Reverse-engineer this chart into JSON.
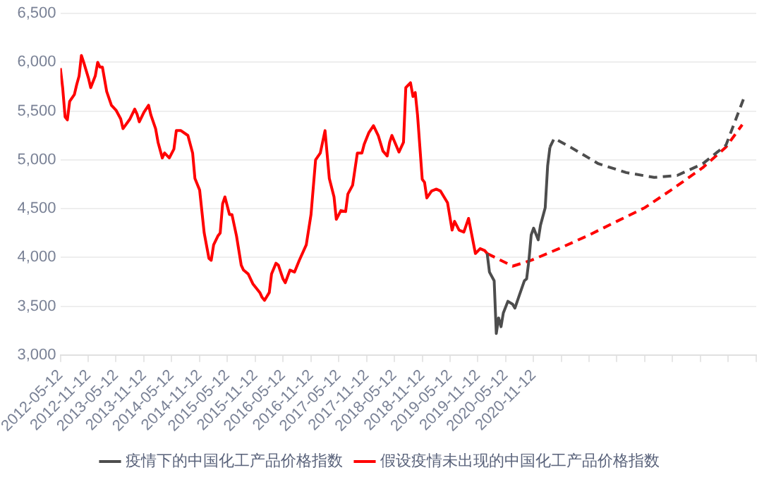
{
  "chart_data": {
    "type": "line",
    "legend": "bottom",
    "grid": "y",
    "marker": "none",
    "xlim": [
      "2012-05-12",
      "2024-11-12"
    ],
    "xticks": [
      {
        "value": "2012-05-12",
        "label": "2012-05-12"
      },
      {
        "value": "2012-11-12",
        "label": "2012-11-12"
      },
      {
        "value": "2013-05-12",
        "label": "2013-05-12"
      },
      {
        "value": "2013-11-12",
        "label": "2013-11-12"
      },
      {
        "value": "2014-05-12",
        "label": "2014-05-12"
      },
      {
        "value": "2014-11-12",
        "label": "2014-11-12"
      },
      {
        "value": "2015-05-12",
        "label": "2015-05-12"
      },
      {
        "value": "2015-11-12",
        "label": "2015-11-12"
      },
      {
        "value": "2016-05-12",
        "label": "2016-05-12"
      },
      {
        "value": "2016-11-12",
        "label": "2016-11-12"
      },
      {
        "value": "2017-05-12",
        "label": "2017-05-12"
      },
      {
        "value": "2017-11-12",
        "label": "2017-11-12"
      },
      {
        "value": "2018-05-12",
        "label": "2018-05-12"
      },
      {
        "value": "2018-11-12",
        "label": "2018-11-12"
      },
      {
        "value": "2019-05-12",
        "label": "2019-05-12"
      },
      {
        "value": "2019-11-12",
        "label": "2019-11-12"
      },
      {
        "value": "2020-05-12",
        "label": "2020-05-12"
      },
      {
        "value": "2020-11-12",
        "label": "2020-11-12"
      },
      {
        "value": "2021-05-12",
        "label": null
      },
      {
        "value": "2021-11-12",
        "label": null
      },
      {
        "value": "2022-05-12",
        "label": null
      },
      {
        "value": "2022-11-12",
        "label": null
      },
      {
        "value": "2023-05-12",
        "label": null
      },
      {
        "value": "2023-11-12",
        "label": null
      },
      {
        "value": "2024-05-12",
        "label": null
      },
      {
        "value": "2024-11-12",
        "label": null
      }
    ],
    "ylim": [
      3000,
      6500
    ],
    "yticks": [
      {
        "value": 3000,
        "label": "3,000"
      },
      {
        "value": 3500,
        "label": "3,500"
      },
      {
        "value": 4000,
        "label": "4,000"
      },
      {
        "value": 4500,
        "label": "4,500"
      },
      {
        "value": 5000,
        "label": "5,000"
      },
      {
        "value": 5500,
        "label": "5,500"
      },
      {
        "value": 6000,
        "label": "6,000"
      },
      {
        "value": 6500,
        "label": "6,500"
      }
    ],
    "series": [
      {
        "name": "疫情下的中国化工产品价格指数",
        "color": "#4d4d4d",
        "line_style": "solid",
        "x": [
          "2020-01-12",
          "2020-01-27",
          "2020-02-27",
          "2020-03-12",
          "2020-03-27",
          "2020-04-12",
          "2020-04-27",
          "2020-05-27",
          "2020-06-27",
          "2020-07-12",
          "2020-08-12",
          "2020-09-12",
          "2020-09-27",
          "2020-10-12",
          "2020-10-27",
          "2020-11-12",
          "2020-12-12",
          "2020-12-27",
          "2021-01-27",
          "2021-02-12",
          "2021-02-27"
        ],
        "values": [
          4040,
          3850,
          3760,
          3220,
          3380,
          3290,
          3430,
          3550,
          3520,
          3480,
          3620,
          3760,
          3780,
          3970,
          4230,
          4300,
          4180,
          4330,
          4510,
          4940,
          5130
        ]
      },
      {
        "color": "#4d4d4d",
        "line_style": "dashed",
        "x": [
          "2021-02-27",
          "2021-03-27",
          "2021-07-12",
          "2022-01-12",
          "2022-07-12",
          "2023-01-12",
          "2023-06-12",
          "2023-11-27",
          "2024-04-27",
          "2024-08-27"
        ],
        "values": [
          5130,
          5220,
          5130,
          4960,
          4870,
          4820,
          4840,
          4960,
          5150,
          5650
        ]
      },
      {
        "name": "假设疫情未出现的中国化工产品价格指数",
        "color": "#ff0000",
        "line_style": "solid",
        "x": [
          "2012-05-12",
          "2012-05-27",
          "2012-06-12",
          "2012-06-27",
          "2012-07-12",
          "2012-08-12",
          "2012-08-27",
          "2012-09-12",
          "2012-09-27",
          "2012-10-12",
          "2012-11-12",
          "2012-11-27",
          "2012-12-27",
          "2013-01-12",
          "2013-01-27",
          "2013-02-12",
          "2013-03-12",
          "2013-04-12",
          "2013-05-12",
          "2013-06-12",
          "2013-06-27",
          "2013-08-12",
          "2013-09-12",
          "2013-09-27",
          "2013-10-12",
          "2013-11-12",
          "2013-12-12",
          "2013-12-27",
          "2014-01-27",
          "2014-02-12",
          "2014-03-12",
          "2014-03-27",
          "2014-04-27",
          "2014-05-27",
          "2014-06-12",
          "2014-07-12",
          "2014-08-27",
          "2014-09-27",
          "2014-10-12",
          "2014-11-12",
          "2014-12-12",
          "2015-01-12",
          "2015-01-27",
          "2015-02-12",
          "2015-03-12",
          "2015-03-27",
          "2015-04-12",
          "2015-04-27",
          "2015-05-27",
          "2015-06-12",
          "2015-07-12",
          "2015-08-12",
          "2015-08-27",
          "2015-09-27",
          "2015-10-27",
          "2015-12-12",
          "2015-12-27",
          "2016-01-12",
          "2016-02-12",
          "2016-02-27",
          "2016-03-27",
          "2016-04-12",
          "2016-05-12",
          "2016-05-27",
          "2016-06-27",
          "2016-07-27",
          "2016-08-27",
          "2016-10-12",
          "2016-11-12",
          "2016-12-12",
          "2017-01-12",
          "2017-02-12",
          "2017-03-12",
          "2017-04-12",
          "2017-04-27",
          "2017-05-27",
          "2017-06-27",
          "2017-07-12",
          "2017-08-12",
          "2017-09-12",
          "2017-10-12",
          "2017-10-27",
          "2017-11-27",
          "2017-12-27",
          "2018-01-27",
          "2018-02-27",
          "2018-03-27",
          "2018-04-12",
          "2018-04-27",
          "2018-06-12",
          "2018-07-12",
          "2018-07-27",
          "2018-08-27",
          "2018-09-12",
          "2018-09-27",
          "2018-10-12",
          "2018-11-12",
          "2018-11-27",
          "2018-12-12",
          "2019-01-12",
          "2019-02-12",
          "2019-03-12",
          "2019-04-27",
          "2019-05-27",
          "2019-06-12",
          "2019-07-12",
          "2019-08-12",
          "2019-09-12",
          "2019-09-27",
          "2019-10-27",
          "2019-11-27",
          "2019-12-27",
          "2020-01-12"
        ],
        "values": [
          5940,
          5740,
          5440,
          5410,
          5600,
          5670,
          5770,
          5860,
          6070,
          6000,
          5840,
          5740,
          5860,
          6000,
          5950,
          5950,
          5700,
          5560,
          5510,
          5420,
          5320,
          5420,
          5520,
          5470,
          5390,
          5490,
          5560,
          5460,
          5320,
          5180,
          5020,
          5070,
          5020,
          5110,
          5300,
          5300,
          5250,
          5070,
          4810,
          4690,
          4250,
          3990,
          3970,
          4130,
          4220,
          4250,
          4550,
          4620,
          4440,
          4440,
          4220,
          3920,
          3870,
          3830,
          3730,
          3640,
          3590,
          3560,
          3640,
          3830,
          3940,
          3920,
          3780,
          3740,
          3870,
          3850,
          3970,
          4130,
          4440,
          5000,
          5070,
          5300,
          4810,
          4620,
          4390,
          4480,
          4470,
          4650,
          4740,
          5070,
          5070,
          5160,
          5280,
          5350,
          5250,
          5090,
          5040,
          5180,
          5250,
          5080,
          5180,
          5740,
          5790,
          5650,
          5690,
          5460,
          4800,
          4770,
          4610,
          4680,
          4700,
          4680,
          4560,
          4280,
          4370,
          4280,
          4260,
          4400,
          4280,
          4040,
          4090,
          4070,
          4040
        ]
      },
      {
        "color": "#ff0000",
        "line_style": "dashed",
        "x": [
          "2020-01-12",
          "2020-06-27",
          "2020-10-27",
          "2021-04-27",
          "2021-11-12",
          "2022-05-12",
          "2022-11-12",
          "2023-05-12",
          "2023-11-27",
          "2024-04-27",
          "2024-08-12"
        ],
        "values": [
          4040,
          3910,
          3970,
          4090,
          4230,
          4370,
          4510,
          4700,
          4920,
          5130,
          5360
        ]
      }
    ]
  }
}
